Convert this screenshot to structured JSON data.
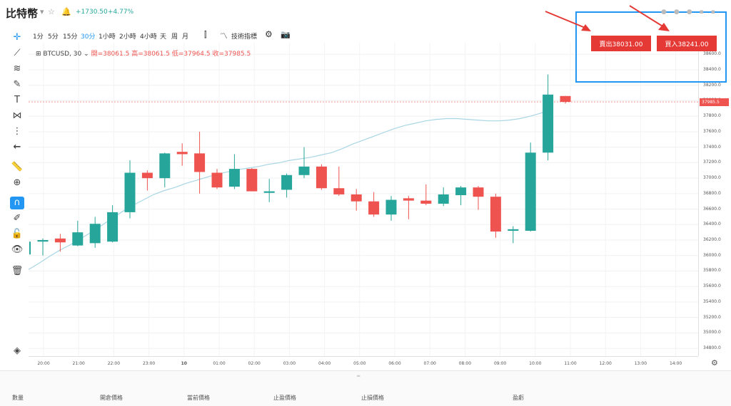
{
  "header": {
    "title": "比特幣",
    "price_change": "+1730.50",
    "pct_change": "+4.77%"
  },
  "toolbar": {
    "timeframes": [
      "1分",
      "5分",
      "15分",
      "30分",
      "1小時",
      "2小時",
      "4小時",
      "天",
      "周",
      "月"
    ],
    "active": "30分",
    "indicators_label": "技術指標"
  },
  "legend": {
    "symbol": "BTCUSD, 30",
    "open_label": "開=38061.5",
    "high_label": "高=38061.5",
    "low_label": "低=37964.5",
    "close_label": "收=37985.5"
  },
  "trade": {
    "sell_label": "賣出38031.00",
    "buy_label": "買入38241.00"
  },
  "bottom": {
    "columns": [
      "數量",
      "開倉價格",
      "當前價格",
      "止盈價格",
      "止損價格",
      "盈虧"
    ]
  },
  "chart_data": {
    "type": "candlestick",
    "price_axis_ticks": [
      "38600.0",
      "38400.0",
      "38200.0",
      "38000.0",
      "37800.0",
      "37600.0",
      "37400.0",
      "37200.0",
      "37000.0",
      "36800.0",
      "36600.0",
      "36400.0",
      "36200.0",
      "36000.0",
      "35800.0",
      "35600.0",
      "35400.0",
      "35200.0",
      "35000.0",
      "34800.0"
    ],
    "current_price_label": "37985.5",
    "time_ticks": [
      "20:00",
      "21:00",
      "22:00",
      "23:00",
      "10",
      "01:00",
      "02:00",
      "03:00",
      "04:00",
      "05:00",
      "06:00",
      "07:00",
      "08:00",
      "09:00",
      "10:00",
      "11:00",
      "12:00",
      "13:00",
      "14:00"
    ],
    "ylim": [
      34700,
      38750
    ],
    "candles": [
      {
        "o": 36180,
        "h": 36220,
        "l": 36000,
        "c": 36200
      },
      {
        "o": 36220,
        "h": 36280,
        "l": 36050,
        "c": 36170
      },
      {
        "o": 36130,
        "h": 36450,
        "l": 36120,
        "c": 36300
      },
      {
        "o": 36160,
        "h": 36500,
        "l": 36100,
        "c": 36410
      },
      {
        "o": 36180,
        "h": 36650,
        "l": 36170,
        "c": 36560
      },
      {
        "o": 36560,
        "h": 37230,
        "l": 36480,
        "c": 37070
      },
      {
        "o": 37070,
        "h": 37100,
        "l": 36840,
        "c": 37000
      },
      {
        "o": 37000,
        "h": 37330,
        "l": 36880,
        "c": 37320
      },
      {
        "o": 37340,
        "h": 37450,
        "l": 37160,
        "c": 37310
      },
      {
        "o": 37320,
        "h": 37600,
        "l": 36800,
        "c": 37080
      },
      {
        "o": 37070,
        "h": 37120,
        "l": 36860,
        "c": 36880
      },
      {
        "o": 36890,
        "h": 37310,
        "l": 36860,
        "c": 37120
      },
      {
        "o": 37120,
        "h": 37130,
        "l": 36830,
        "c": 36830
      },
      {
        "o": 36810,
        "h": 36990,
        "l": 36690,
        "c": 36830
      },
      {
        "o": 36850,
        "h": 37060,
        "l": 36750,
        "c": 37040
      },
      {
        "o": 37040,
        "h": 37400,
        "l": 37000,
        "c": 37150
      },
      {
        "o": 37150,
        "h": 37180,
        "l": 36850,
        "c": 36870
      },
      {
        "o": 36870,
        "h": 37150,
        "l": 36770,
        "c": 36790
      },
      {
        "o": 36790,
        "h": 36860,
        "l": 36580,
        "c": 36700
      },
      {
        "o": 36700,
        "h": 36820,
        "l": 36500,
        "c": 36530
      },
      {
        "o": 36530,
        "h": 36770,
        "l": 36450,
        "c": 36720
      },
      {
        "o": 36740,
        "h": 36770,
        "l": 36470,
        "c": 36710
      },
      {
        "o": 36710,
        "h": 36920,
        "l": 36650,
        "c": 36670
      },
      {
        "o": 36670,
        "h": 36880,
        "l": 36640,
        "c": 36790
      },
      {
        "o": 36780,
        "h": 36900,
        "l": 36650,
        "c": 36880
      },
      {
        "o": 36880,
        "h": 36900,
        "l": 36590,
        "c": 36760
      },
      {
        "o": 36760,
        "h": 36800,
        "l": 36230,
        "c": 36310
      },
      {
        "o": 36320,
        "h": 36380,
        "l": 36160,
        "c": 36340
      },
      {
        "o": 36320,
        "h": 37460,
        "l": 36310,
        "c": 37330
      },
      {
        "o": 37330,
        "h": 38340,
        "l": 37230,
        "c": 38080
      },
      {
        "o": 38061.5,
        "h": 38061.5,
        "l": 37964.5,
        "c": 37985.5
      }
    ],
    "ma": [
      35820,
      35900,
      35990,
      36070,
      36140,
      36220,
      36300,
      36390,
      36480,
      36570,
      36650,
      36720,
      36790,
      36840,
      36880,
      36930,
      36970,
      37010,
      37050,
      37080,
      37110,
      37130,
      37150,
      37180,
      37200,
      37230,
      37250,
      37270,
      37300,
      37330,
      37380,
      37440,
      37490,
      37540,
      37590,
      37640,
      37680,
      37710,
      37740,
      37760,
      37770,
      37770,
      37760,
      37750,
      37740,
      37740,
      37750,
      37770,
      37800,
      37840,
      37890
    ]
  }
}
